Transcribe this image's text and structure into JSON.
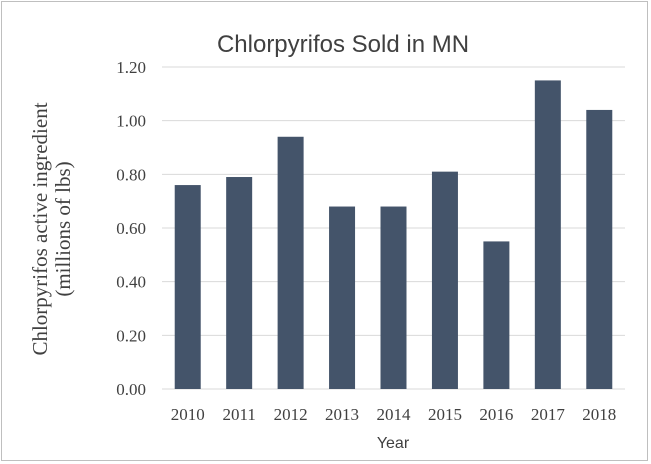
{
  "chart_data": {
    "type": "bar",
    "title": "Chlorpyrifos Sold in MN",
    "xlabel": "Year",
    "ylabel_lines": [
      "Chlorpyrifos active ingredient",
      "(millions of lbs)"
    ],
    "categories": [
      "2010",
      "2011",
      "2012",
      "2013",
      "2014",
      "2015",
      "2016",
      "2017",
      "2018"
    ],
    "values": [
      0.76,
      0.79,
      0.94,
      0.68,
      0.68,
      0.81,
      0.55,
      1.15,
      1.04
    ],
    "ylim": [
      0,
      1.2
    ],
    "yticks": [
      "0.00",
      "0.20",
      "0.40",
      "0.60",
      "0.80",
      "1.00",
      "1.20"
    ],
    "grid": true,
    "legend": "none",
    "colors": {
      "bar": "#44546a",
      "grid": "#d9d9d9",
      "text": "#404040"
    }
  }
}
